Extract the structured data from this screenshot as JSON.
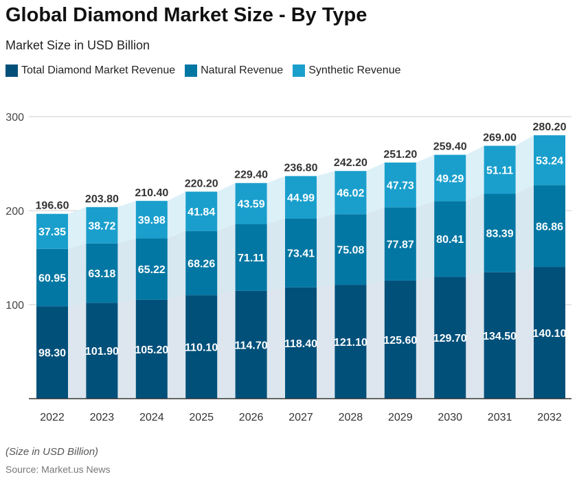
{
  "chart_data": {
    "type": "bar",
    "stacked": true,
    "title": "Global Diamond Market Size - By Type",
    "subtitle": "Market Size in USD Billion",
    "categories": [
      "2022",
      "2023",
      "2024",
      "2025",
      "2026",
      "2027",
      "2028",
      "2029",
      "2030",
      "2031",
      "2032"
    ],
    "series": [
      {
        "name": "Total Diamond Market Revenue",
        "color": "#01507a",
        "values": [
          98.3,
          101.9,
          105.2,
          110.1,
          114.7,
          118.4,
          121.1,
          125.6,
          129.7,
          134.5,
          140.1
        ]
      },
      {
        "name": "Natural Revenue",
        "color": "#0277a3",
        "values": [
          60.95,
          63.18,
          65.22,
          68.26,
          71.11,
          73.41,
          75.08,
          77.87,
          80.41,
          83.39,
          86.86
        ]
      },
      {
        "name": "Synthetic Revenue",
        "color": "#1a9fcc",
        "values": [
          37.35,
          38.72,
          39.98,
          41.84,
          43.59,
          44.99,
          46.02,
          47.73,
          49.29,
          51.11,
          53.24
        ]
      }
    ],
    "totals": [
      "196.60",
      "203.80",
      "210.40",
      "220.20",
      "229.40",
      "236.80",
      "242.20",
      "251.20",
      "259.40",
      "269.00",
      "280.20"
    ],
    "ylim": [
      0,
      300
    ],
    "yticks": [
      "100",
      "200",
      "300"
    ],
    "grid": true,
    "legend": "top-left"
  },
  "footer": {
    "note": "(Size in USD Billion)",
    "source": "Source: Market.us News"
  }
}
